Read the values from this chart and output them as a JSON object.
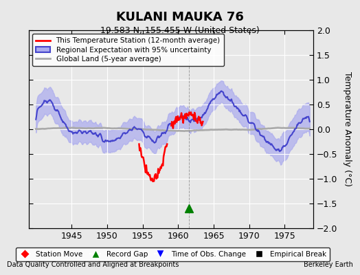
{
  "title": "KULANI MAUKA 76",
  "subtitle": "19.583 N, 155.455 W (United States)",
  "ylabel": "Temperature Anomaly (°C)",
  "xlabel_bottom_left": "Data Quality Controlled and Aligned at Breakpoints",
  "xlabel_bottom_right": "Berkeley Earth",
  "ylim": [
    -2,
    2
  ],
  "xlim": [
    1939,
    1979
  ],
  "xticks": [
    1945,
    1950,
    1955,
    1960,
    1965,
    1970,
    1975
  ],
  "yticks": [
    -2,
    -1.5,
    -1,
    -0.5,
    0,
    0.5,
    1,
    1.5,
    2
  ],
  "bg_color": "#e8e8e8",
  "plot_bg_color": "#e8e8e8",
  "grid_color": "white",
  "regional_color": "#4444cc",
  "regional_fill_color": "#aaaaee",
  "station_color": "red",
  "global_color": "#aaaaaa",
  "vertical_line_x": 1961.5,
  "record_gap_x": 1961.5,
  "record_gap_y": -1.6,
  "legend_entries": [
    {
      "label": "This Temperature Station (12-month average)",
      "color": "red",
      "lw": 2
    },
    {
      "label": "Regional Expectation with 95% uncertainty",
      "color": "#4444cc",
      "fill": "#aaaaee"
    },
    {
      "label": "Global Land (5-year average)",
      "color": "#aaaaaa",
      "lw": 2
    }
  ],
  "bottom_legend": [
    {
      "label": "Station Move",
      "marker": "D",
      "color": "red"
    },
    {
      "label": "Record Gap",
      "marker": "^",
      "color": "green"
    },
    {
      "label": "Time of Obs. Change",
      "marker": "v",
      "color": "blue"
    },
    {
      "label": "Empirical Break",
      "marker": "s",
      "color": "black"
    }
  ]
}
